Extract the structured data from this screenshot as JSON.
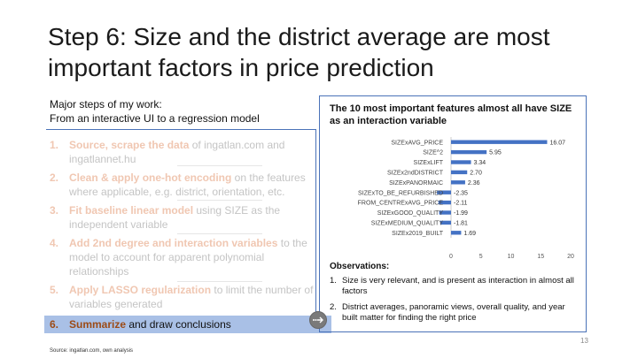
{
  "slide": {
    "title": "Step 6: Size and the district average are most important factors in price prediction",
    "subtitle_line1": "Major steps of my work:",
    "subtitle_line2": "From an interactive UI to a regression model",
    "page_number": "13",
    "source": "Source: ingatlan.com, own analysis"
  },
  "steps": [
    {
      "num": "1.",
      "highlight": "Source, scrape the data",
      "rest": " of ingatlan.com and ingatlannet.hu"
    },
    {
      "num": "2.",
      "highlight": "Clean & apply one-hot encoding",
      "rest": " on the features where applicable, e.g. district, orientation, etc."
    },
    {
      "num": "3.",
      "highlight": "Fit baseline linear model",
      "rest": " using SIZE as the independent variable"
    },
    {
      "num": "4.",
      "highlight": "Add 2nd degree and interaction variables",
      "rest": " to the model to account for apparent polynomial relationships"
    },
    {
      "num": "5.",
      "highlight": "Apply LASSO regularization",
      "rest": " to limit the number of variables generated"
    },
    {
      "num": "6.",
      "highlight": "Summarize",
      "rest": " and draw conclusions"
    }
  ],
  "chart_panel": {
    "title": "The 10 most important features almost all have SIZE as an interaction variable",
    "observations_title": "Observations:",
    "observations": [
      {
        "num": "1.",
        "text": "Size is very relevant, and is present as interaction in almost all factors"
      },
      {
        "num": "2.",
        "text": "District averages, panoramic views, overall quality, and year built matter for finding the right price"
      }
    ]
  },
  "chart_data": {
    "type": "bar",
    "orientation": "horizontal",
    "categories": [
      "SIZExAVG_PRICE",
      "SIZE^2",
      "SIZExLIFT",
      "SIZEx2ndDISTRICT",
      "SIZExPANORMAIC",
      "SIZExTO_BE_REFURBISHED",
      "FROM_CENTRExAVG_PRICE",
      "SIZExGOOD_QUALITY",
      "SIZExMEDIUM_QUALITY",
      "SIZEx2019_BUILT"
    ],
    "values": [
      16.07,
      5.95,
      3.34,
      2.7,
      2.36,
      -2.35,
      -2.11,
      -1.99,
      -1.81,
      1.69
    ],
    "value_labels": [
      "16.07",
      "5.95",
      "3.34",
      "2.70",
      "2.36",
      "-2.35",
      "-2.11",
      "-1.99",
      "-1.81",
      "1.69"
    ],
    "xticks": [
      "0",
      "5",
      "10",
      "15",
      "20"
    ],
    "xlim": [
      -2.5,
      20
    ],
    "bar_color": "#4472c4",
    "grid": false
  },
  "colors": {
    "accent_blue": "#4a72b8",
    "active_step_bg": "#a9c0e6",
    "step_highlight_dim": "#f0c7b2",
    "step_highlight_active": "#9c4b16"
  }
}
